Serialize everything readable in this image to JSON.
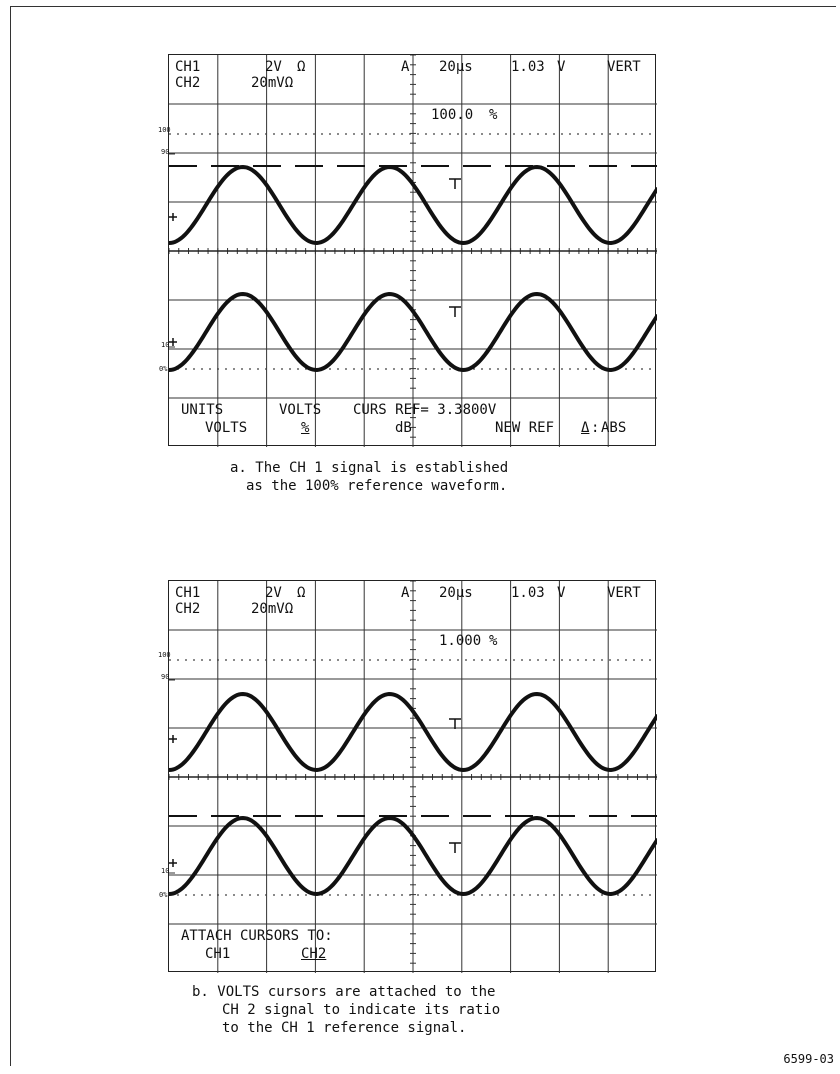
{
  "panel_a": {
    "ch1": "CH1",
    "ch1_scale": "2V",
    "ch1_imp": "Ω",
    "ch2": "CH2",
    "ch2_scale": "20mVΩ",
    "trig": "A",
    "timebase": "20μs",
    "volts": "1.03",
    "volts_unit": "V",
    "vert": "VERT",
    "cursor_readout": "100.0",
    "cursor_unit": "%",
    "grat_100": "100",
    "grat_90": "90",
    "grat_10": "10",
    "grat_0": "0%",
    "menu_row1": [
      "UNITS",
      "VOLTS",
      "CURS REF= 3.3800V"
    ],
    "menu_row2": [
      "VOLTS",
      "%",
      "dB",
      "NEW REF",
      "Δ",
      "ABS"
    ],
    "caption_line1": "a. The CH 1 signal is established",
    "caption_line2": "as the 100% reference waveform."
  },
  "panel_b": {
    "ch1": "CH1",
    "ch1_scale": "2V",
    "ch1_imp": "Ω",
    "ch2": "CH2",
    "ch2_scale": "20mVΩ",
    "trig": "A",
    "timebase": "20μs",
    "volts": "1.03",
    "volts_unit": "V",
    "vert": "VERT",
    "cursor_readout": "1.000",
    "cursor_unit": "%",
    "grat_100": "100",
    "grat_90": "90",
    "grat_10": "10",
    "grat_0": "0%",
    "menu_row1": [
      "ATTACH CURSORS TO:"
    ],
    "menu_row2": [
      "CH1",
      "CH2"
    ],
    "caption_line1": "b. VOLTS cursors are attached to the",
    "caption_line2": "CH 2 signal to indicate its ratio",
    "caption_line3": "to the CH 1 reference signal."
  },
  "figure_number": "6599-03"
}
